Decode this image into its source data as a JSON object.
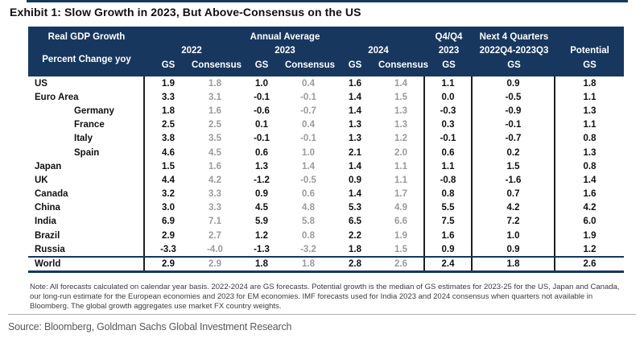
{
  "title": "Exhibit 1: Slow Growth in 2023, But Above-Consensus on the US",
  "colors": {
    "header_navy": "#17375e",
    "gs_value_text": "#111111",
    "consensus_value_text": "#9b9b9b"
  },
  "header": {
    "real_gdp": "Real GDP Growth",
    "percent_change": "Percent Change yoy",
    "annual_average": "Annual Average",
    "year_2022": "2022",
    "year_2023": "2023",
    "year_2024": "2024",
    "q4q4_line1": "Q4/Q4",
    "q4q4_line2": "2023",
    "next4q_line1": "Next 4 Quarters",
    "next4q_line2": "2022Q4-2023Q3",
    "potential": "Potential",
    "gs": "GS",
    "consensus": "Consensus"
  },
  "table": {
    "column_keys": [
      "2022 GS",
      "2022 Consensus",
      "2023 GS",
      "2023 Consensus",
      "2024 GS",
      "2024 Consensus",
      "Q4/Q4 2023 GS",
      "Next 4 Quarters 2022Q4-2023Q3 GS",
      "Potential GS"
    ],
    "rows": [
      {
        "country": "US",
        "indent": false,
        "values": [
          "1.9",
          "1.8",
          "1.0",
          "0.4",
          "1.6",
          "1.4",
          "1.1",
          "0.9",
          "1.8"
        ]
      },
      {
        "country": "Euro Area",
        "indent": false,
        "values": [
          "3.3",
          "3.1",
          "-0.1",
          "-0.1",
          "1.4",
          "1.5",
          "0.0",
          "-0.5",
          "1.1"
        ]
      },
      {
        "country": "Germany",
        "indent": true,
        "values": [
          "1.8",
          "1.6",
          "-0.6",
          "-0.7",
          "1.4",
          "1.3",
          "-0.3",
          "-0.9",
          "1.3"
        ]
      },
      {
        "country": "France",
        "indent": true,
        "values": [
          "2.5",
          "2.5",
          "0.1",
          "0.4",
          "1.3",
          "1.3",
          "0.3",
          "-0.1",
          "1.1"
        ]
      },
      {
        "country": "Italy",
        "indent": true,
        "values": [
          "3.8",
          "3.5",
          "-0.1",
          "-0.1",
          "1.3",
          "1.2",
          "-0.1",
          "-0.7",
          "0.8"
        ]
      },
      {
        "country": "Spain",
        "indent": true,
        "values": [
          "4.6",
          "4.5",
          "0.6",
          "1.0",
          "2.1",
          "2.0",
          "0.6",
          "0.2",
          "1.3"
        ]
      },
      {
        "country": "Japan",
        "indent": false,
        "values": [
          "1.5",
          "1.6",
          "1.3",
          "1.4",
          "1.4",
          "1.1",
          "1.1",
          "1.5",
          "0.8"
        ]
      },
      {
        "country": "UK",
        "indent": false,
        "values": [
          "4.4",
          "4.2",
          "-1.2",
          "-0.5",
          "0.9",
          "1.1",
          "-0.8",
          "-1.6",
          "1.4"
        ]
      },
      {
        "country": "Canada",
        "indent": false,
        "values": [
          "3.2",
          "3.3",
          "0.9",
          "0.6",
          "1.4",
          "1.7",
          "0.8",
          "0.7",
          "1.6"
        ]
      },
      {
        "country": "China",
        "indent": false,
        "values": [
          "3.0",
          "3.3",
          "4.5",
          "4.8",
          "5.3",
          "4.9",
          "5.5",
          "4.2",
          "4.2"
        ]
      },
      {
        "country": "India",
        "indent": false,
        "values": [
          "6.9",
          "7.1",
          "5.9",
          "5.8",
          "6.5",
          "6.6",
          "7.5",
          "7.2",
          "6.0"
        ]
      },
      {
        "country": "Brazil",
        "indent": false,
        "values": [
          "2.9",
          "2.7",
          "1.2",
          "0.8",
          "2.2",
          "1.9",
          "1.6",
          "1.0",
          "1.9"
        ]
      },
      {
        "country": "Russia",
        "indent": false,
        "values": [
          "-3.3",
          "-4.0",
          "-1.3",
          "-3.2",
          "1.8",
          "1.5",
          "0.9",
          "0.9",
          "1.2"
        ]
      }
    ],
    "world": {
      "country": "World",
      "indent": false,
      "values": [
        "2.9",
        "2.9",
        "1.8",
        "1.8",
        "2.8",
        "2.6",
        "2.4",
        "1.8",
        "2.6"
      ]
    }
  },
  "note": "Note: All forecasts calculated on calendar year basis. 2022-2024 are GS forecasts. Potential growth is the median of GS estimates for 2023-25 for the US, Japan and Canada, our long-run estimate for the European economies and 2023 for EM economies. IMF forecasts used for India 2023 and 2024 consensus when quarters not available in Bloomberg. The global growth aggregates use market FX country weights.",
  "source": "Source: Bloomberg, Goldman Sachs Global Investment Research"
}
